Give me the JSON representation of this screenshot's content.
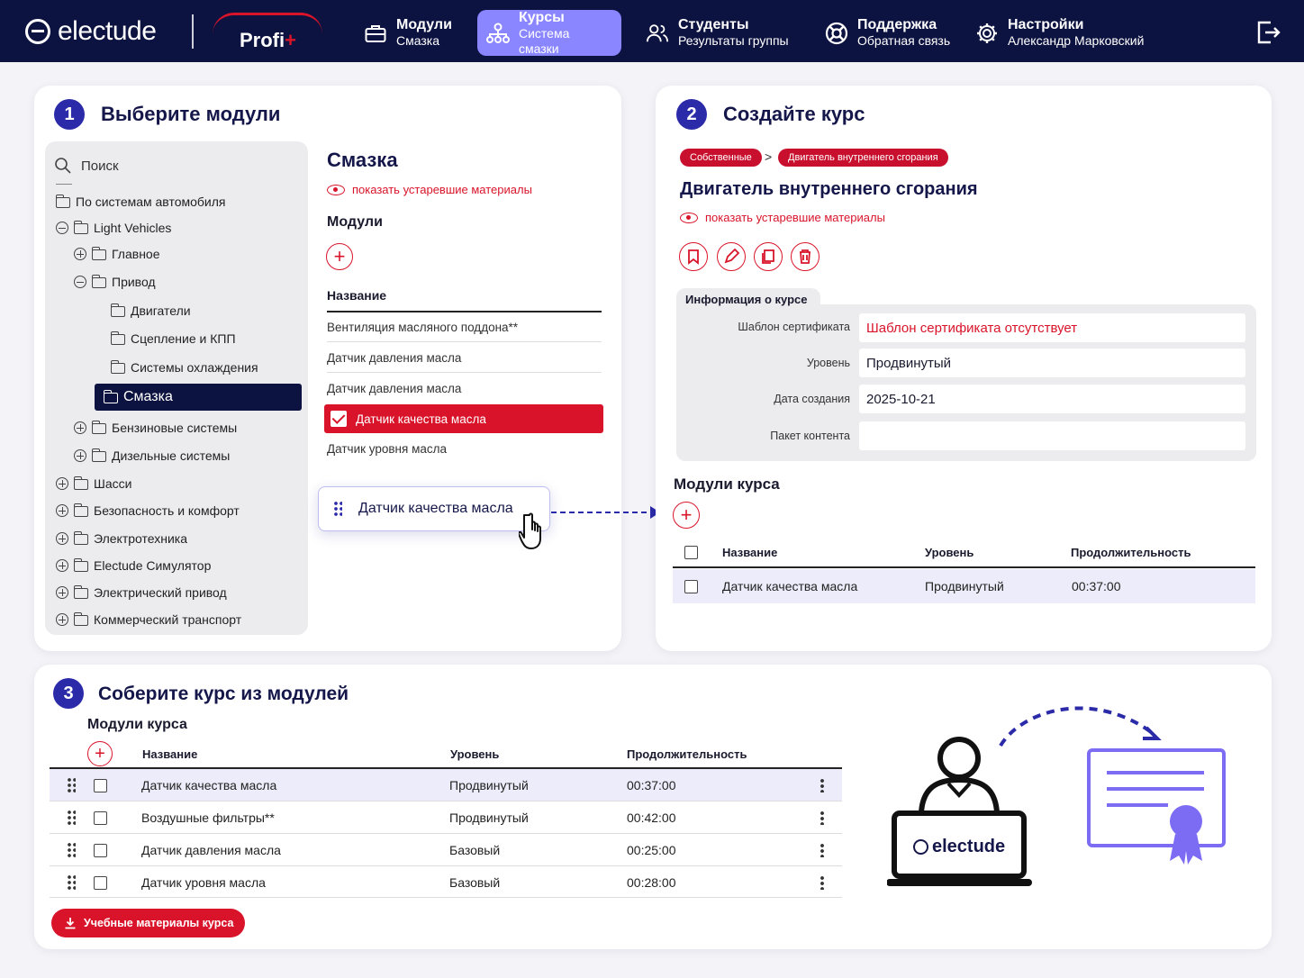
{
  "brand": {
    "logo": "electude",
    "partner": "Profi",
    "partner_plus": "+"
  },
  "nav": [
    {
      "title": "Модули",
      "subtitle": "Смазка"
    },
    {
      "title": "Курсы",
      "subtitle": "Система смазки"
    },
    {
      "title": "Студенты",
      "subtitle": "Результаты группы"
    },
    {
      "title": "Поддержка",
      "subtitle": "Обратная связь"
    },
    {
      "title": "Настройки",
      "subtitle": "Александр Марковский"
    }
  ],
  "step1": {
    "number": "1",
    "title": "Выберите модули",
    "search_placeholder": "Поиск",
    "tree": [
      "По системам автомобиля",
      "Light Vehicles",
      "Главное",
      "Привод",
      "Двигатели",
      "Сцепление и КПП",
      "Системы охлаждения",
      "Смазка",
      "Бензиновые системы",
      "Дизельные системы",
      "Шасси",
      "Безопасность и комфорт",
      "Электротехника",
      "Electude Симулятор",
      "Электрический привод",
      "Коммерческий транспорт"
    ],
    "section_title": "Смазка",
    "show_old": "показать устаревшие материалы",
    "modules_label": "Модули",
    "add": "+",
    "col_name": "Название",
    "modules": [
      "Вентиляция масляного поддона**",
      "Датчик давления масла",
      "Датчик давления масла",
      "Датчик качества масла",
      "Датчик уровня масла"
    ],
    "dragging": "Датчик качества масла"
  },
  "step2": {
    "number": "2",
    "title": "Создайте курс",
    "breadcrumb": [
      "Собственные",
      "Двигатель внутреннего сгорания"
    ],
    "breadcrumb_sep": ">",
    "course_title": "Двигатель внутреннего сгорания",
    "show_old": "показать устаревшие материалы",
    "info_tab": "Информация о курсе",
    "info": [
      {
        "label": "Шаблон сертификата",
        "value": "Шаблон сертификата отсутствует"
      },
      {
        "label": "Уровень",
        "value": "Продвинутый"
      },
      {
        "label": "Дата создания",
        "value": "2025-10-21"
      },
      {
        "label": "Пакет контента",
        "value": ""
      }
    ],
    "modules_title": "Модули курса",
    "add": "+",
    "columns": [
      "Название",
      "Уровень",
      "Продолжительность"
    ],
    "rows": [
      {
        "name": "Датчик качества масла",
        "level": "Продвинутый",
        "duration": "00:37:00"
      }
    ]
  },
  "step3": {
    "number": "3",
    "title": "Соберите курс из модулей",
    "modules_title": "Модули курса",
    "add": "+",
    "columns": [
      "Название",
      "Уровень",
      "Продолжительность"
    ],
    "rows": [
      {
        "name": "Датчик качества масла",
        "level": "Продвинутый",
        "duration": "00:37:00"
      },
      {
        "name": "Воздушные фильтры**",
        "level": "Продвинутый",
        "duration": "00:42:00"
      },
      {
        "name": "Датчик давления масла",
        "level": "Базовый",
        "duration": "00:25:00"
      },
      {
        "name": "Датчик уровня масла",
        "level": "Базовый",
        "duration": "00:28:00"
      }
    ],
    "download_button": "Учебные материалы курса",
    "laptop_logo": "electude"
  },
  "colors": {
    "nav_bg": "#0d1340",
    "accent": "#8a86ff",
    "brand_red": "#d9142a",
    "primary": "#2b2aa8"
  }
}
